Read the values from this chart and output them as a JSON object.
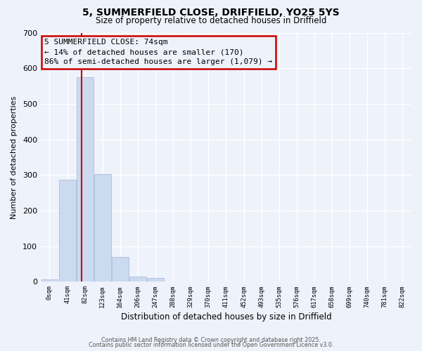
{
  "title": "5, SUMMERFIELD CLOSE, DRIFFIELD, YO25 5YS",
  "subtitle": "Size of property relative to detached houses in Driffield",
  "xlabel": "Distribution of detached houses by size in Driffield",
  "ylabel": "Number of detached properties",
  "bar_color": "#ccdaf0",
  "bar_edge_color": "#aabedd",
  "bin_labels": [
    "0sqm",
    "41sqm",
    "82sqm",
    "123sqm",
    "164sqm",
    "206sqm",
    "247sqm",
    "288sqm",
    "329sqm",
    "370sqm",
    "411sqm",
    "452sqm",
    "493sqm",
    "535sqm",
    "576sqm",
    "617sqm",
    "658sqm",
    "699sqm",
    "740sqm",
    "781sqm",
    "822sqm"
  ],
  "bar_values": [
    7,
    287,
    575,
    302,
    70,
    15,
    10,
    0,
    0,
    0,
    0,
    0,
    0,
    0,
    0,
    0,
    0,
    0,
    0,
    0,
    0
  ],
  "ylim": [
    0,
    700
  ],
  "yticks": [
    0,
    100,
    200,
    300,
    400,
    500,
    600,
    700
  ],
  "property_line_x": 1.805,
  "property_line_color": "#cc0000",
  "annotation_line1": "5 SUMMERFIELD CLOSE: 74sqm",
  "annotation_line2": "← 14% of detached houses are smaller (170)",
  "annotation_line3": "86% of semi-detached houses are larger (1,079) →",
  "background_color": "#eef2fb",
  "grid_color": "#ffffff",
  "footer_line1": "Contains HM Land Registry data © Crown copyright and database right 2025.",
  "footer_line2": "Contains public sector information licensed under the Open Government Licence v3.0."
}
